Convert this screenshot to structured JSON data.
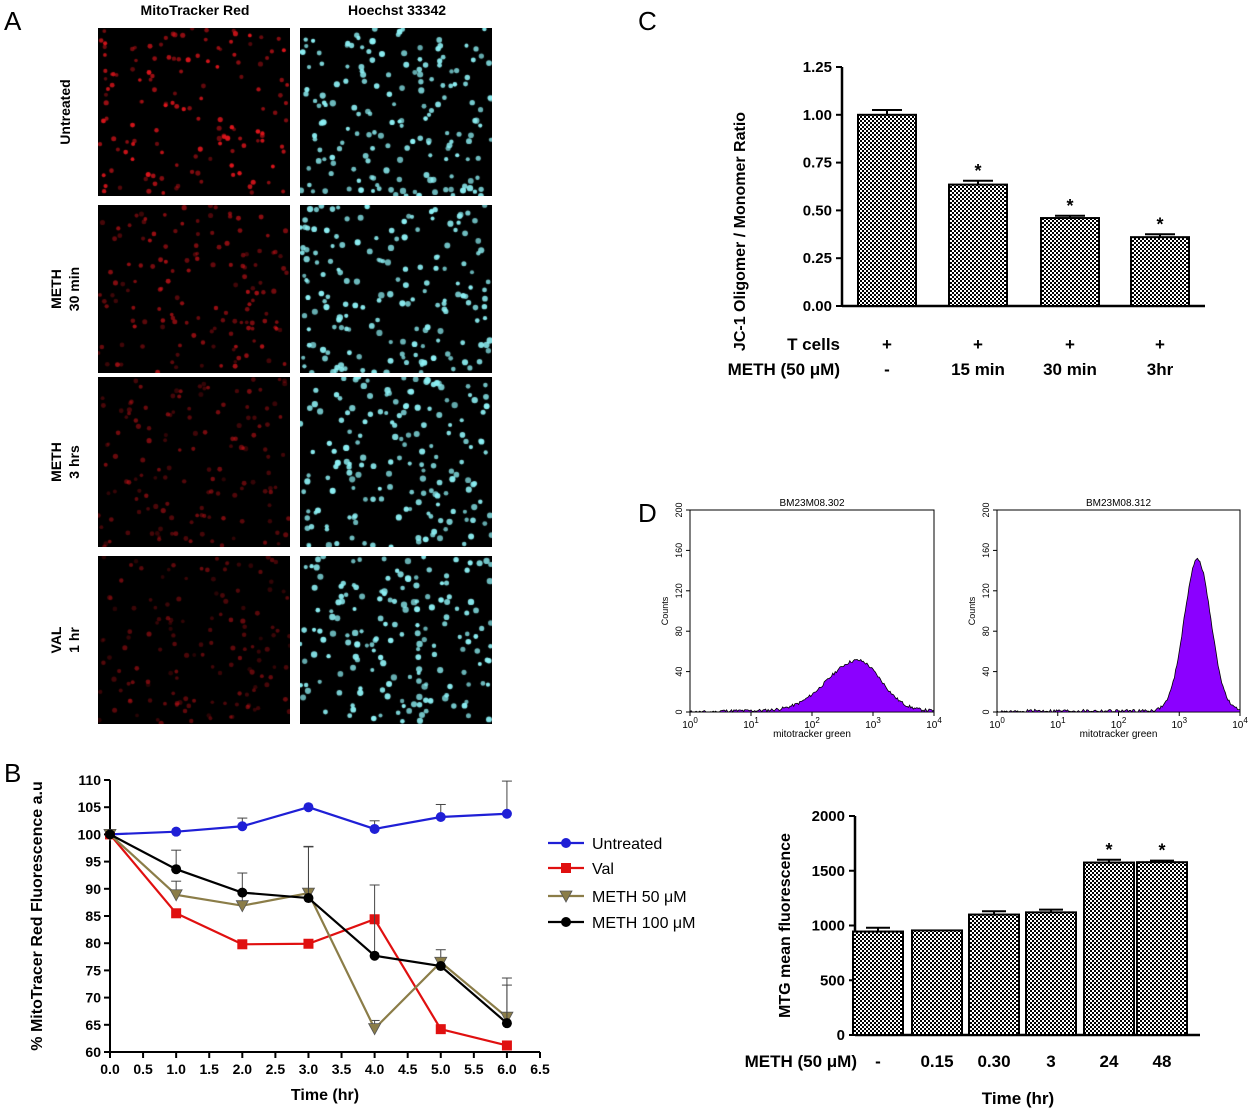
{
  "panels": {
    "A": {
      "letter": "A",
      "columns": [
        "MitoTracker Red",
        "Hoechst 33342"
      ],
      "rows": [
        [
          "Untreated"
        ],
        [
          "METH",
          "30 min"
        ],
        [
          "METH",
          "3 hrs"
        ],
        [
          "VAL",
          "1 hr"
        ]
      ],
      "colors": {
        "mito": "#e0151c",
        "hoechst": "#8cf0f4"
      },
      "mito_intensity": [
        1.0,
        0.75,
        0.55,
        0.5
      ]
    },
    "B": {
      "letter": "B"
    },
    "C": {
      "letter": "C"
    },
    "D": {
      "letter": "D",
      "histograms": [
        {
          "title": "BM23M08.302",
          "ylabel": "Counts",
          "xlabel": "mitotracker green",
          "yticks": [
            "0",
            "40",
            "80",
            "120",
            "160",
            "200"
          ],
          "peak_decade": 2.75,
          "peak_counts": 50
        },
        {
          "title": "BM23M08.312",
          "ylabel": "Counts",
          "xlabel": "mitotracker green",
          "yticks": [
            "0",
            "40",
            "80",
            "120",
            "160",
            "200"
          ],
          "peak_decade": 3.3,
          "peak_counts": 150
        }
      ],
      "fill_color": "#8b00ff"
    }
  },
  "chart_data": [
    {
      "id": "B",
      "type": "line",
      "xlabel": "Time (hr)",
      "ylabel": "% MitoTracer Red Fluorescence a.u",
      "xlim": [
        0,
        6.5
      ],
      "ylim": [
        60,
        110
      ],
      "xticks": [
        "0.0",
        "0.5",
        "1.0",
        "1.5",
        "2.0",
        "2.5",
        "3.0",
        "3.5",
        "4.0",
        "4.5",
        "5.0",
        "5.5",
        "6.0",
        "6.5"
      ],
      "yticks": [
        "60",
        "65",
        "70",
        "75",
        "80",
        "85",
        "90",
        "95",
        "100",
        "105",
        "110"
      ],
      "x": [
        0,
        1,
        2,
        3,
        4,
        5,
        6
      ],
      "legend_position": "right",
      "series": [
        {
          "name": "Untreated",
          "color": "#1f1fd6",
          "marker": "circle",
          "values": [
            100,
            100.5,
            101.5,
            105,
            101,
            103.2,
            103.8
          ],
          "errors": [
            0,
            0,
            1.5,
            0,
            1.5,
            2.3,
            6
          ]
        },
        {
          "name": "Val",
          "color": "#e01010",
          "marker": "square",
          "values": [
            100,
            85.5,
            79.8,
            79.9,
            84.4,
            64.2,
            61.2
          ],
          "errors": [
            0,
            0,
            0,
            0,
            0,
            0,
            0
          ]
        },
        {
          "name": "METH 50 μM",
          "color": "#8b7d48",
          "marker": "triangle-down",
          "values": [
            100,
            88.9,
            86.9,
            89.2,
            64.3,
            76.5,
            66.4
          ],
          "errors": [
            0,
            2.5,
            6,
            8.5,
            1.5,
            2.3,
            7.2
          ]
        },
        {
          "name": "METH 100 μM",
          "color": "#000000",
          "marker": "circle",
          "values": [
            100,
            93.6,
            89.3,
            88.3,
            77.7,
            75.8,
            65.3
          ],
          "errors": [
            0,
            3.5,
            0,
            9.5,
            13,
            0,
            7
          ]
        }
      ]
    },
    {
      "id": "C",
      "type": "bar",
      "ylabel": "JC-1 Oligomer / Monomer Ratio",
      "ylim": [
        0,
        1.25
      ],
      "yticks": [
        "0.00",
        "0.25",
        "0.50",
        "0.75",
        "1.00",
        "1.25"
      ],
      "categories": [
        "T cells: +, METH: -",
        "15 min",
        "30 min",
        "3hr"
      ],
      "values": [
        1.0,
        0.635,
        0.46,
        0.36
      ],
      "errors": [
        0.025,
        0.02,
        0.012,
        0.015
      ],
      "significant": [
        false,
        true,
        true,
        true
      ],
      "significance_mark": "*",
      "table_rows": [
        {
          "label": "T cells",
          "cells": [
            "+",
            "+",
            "+",
            "+"
          ]
        },
        {
          "label": "METH (50 μM)",
          "cells": [
            "-",
            "15 min",
            "30 min",
            "3hr"
          ]
        }
      ],
      "pattern": "checkerboard"
    },
    {
      "id": "D-bottom",
      "type": "bar",
      "ylabel": "MTG mean fluorescence",
      "xlabel": "Time (hr)",
      "ylim": [
        0,
        2000
      ],
      "yticks": [
        "0",
        "500",
        "1000",
        "1500",
        "2000"
      ],
      "categories": [
        "-",
        "0.15",
        "0.30",
        "3",
        "24",
        "48"
      ],
      "row_label": "METH (50 μM)",
      "values": [
        945,
        955,
        1100,
        1120,
        1575,
        1578
      ],
      "errors": [
        35,
        0,
        30,
        25,
        25,
        15
      ],
      "significant": [
        false,
        false,
        false,
        false,
        true,
        true
      ],
      "significance_mark": "*",
      "pattern": "checkerboard"
    }
  ]
}
